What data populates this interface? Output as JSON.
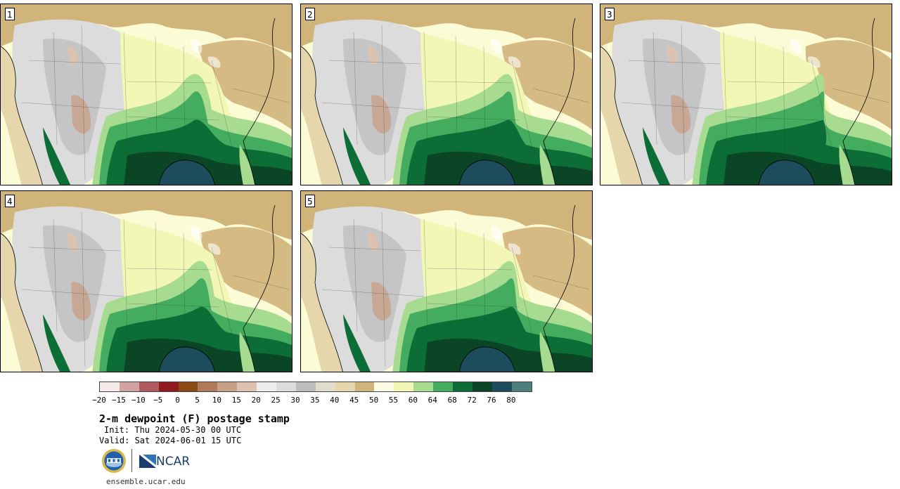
{
  "panels": [
    {
      "label": "1"
    },
    {
      "label": "2"
    },
    {
      "label": "3"
    },
    {
      "label": "4"
    },
    {
      "label": "5"
    }
  ],
  "colorbar": {
    "colors": [
      "#f4e8e8",
      "#d2a1a4",
      "#b05a5e",
      "#901b1f",
      "#8c4a13",
      "#b07b56",
      "#c7a088",
      "#dec2b0",
      "#ededed",
      "#dcdcdc",
      "#bdbdbd",
      "#e0ddcd",
      "#e5d6ab",
      "#d0b47a",
      "#fdfde4",
      "#f2f7b6",
      "#a7db8f",
      "#44ac5e",
      "#0c6e36",
      "#0a4525",
      "#1d4d5c",
      "#4f7e7f"
    ],
    "tick_labels": [
      "−20",
      "−15",
      "−10",
      "−5",
      "0",
      "5",
      "10",
      "15",
      "20",
      "25",
      "30",
      "35",
      "40",
      "45",
      "50",
      "55",
      "60",
      "64",
      "68",
      "72",
      "76",
      "80"
    ]
  },
  "title": "2-m dewpoint (F) postage stamp",
  "init": "Init: Thu 2024-05-30 00 UTC",
  "valid": "Valid: Sat 2024-06-01 15 UTC",
  "site": "ensemble.ucar.edu",
  "logos": {
    "ncar_text": "NCAR"
  }
}
